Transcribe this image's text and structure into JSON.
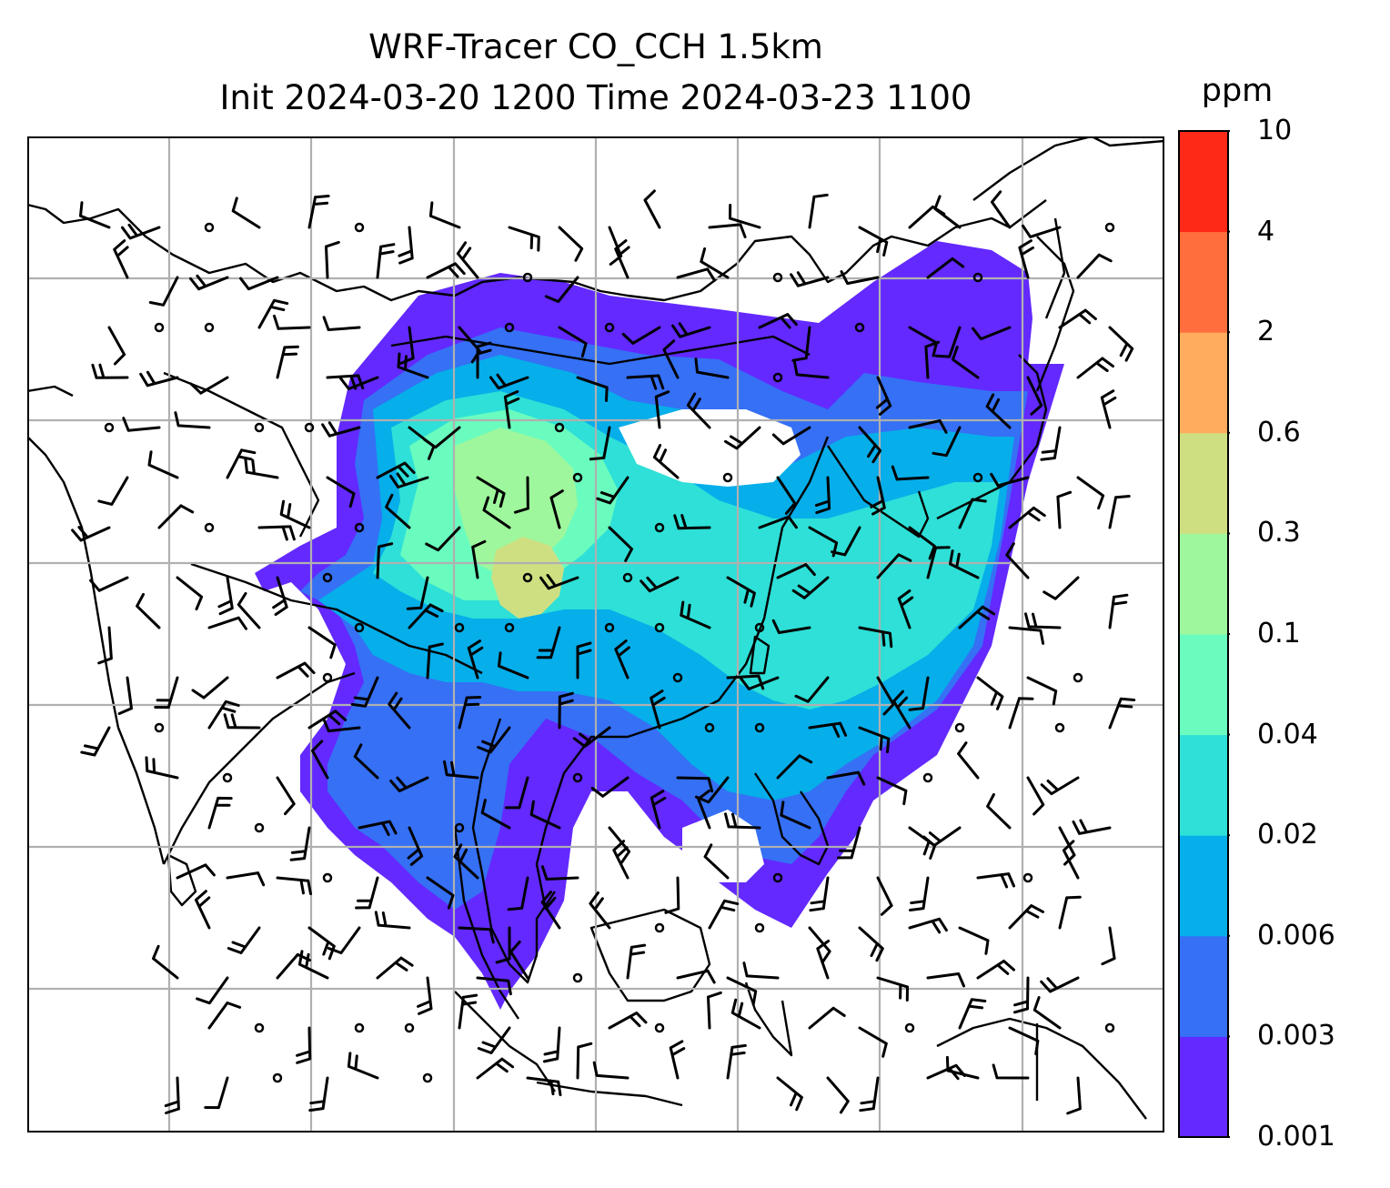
{
  "title": {
    "line1": "WRF-Tracer CO_CCH 1.5km",
    "line2": "Init 2024-03-20 1200 Time 2024-03-23 1100"
  },
  "colorbar": {
    "unit": "ppm",
    "levels": [
      "0.001",
      "0.003",
      "0.006",
      "0.02",
      "0.04",
      "0.1",
      "0.3",
      "0.6",
      "2",
      "4",
      "10"
    ],
    "colors": [
      "#6329ff",
      "#3570f5",
      "#06aeea",
      "#2ee0d7",
      "#6afcbe",
      "#9ef79c",
      "#cedf82",
      "#ffac5e",
      "#ff6e3c",
      "#ff2918"
    ]
  },
  "map": {
    "gridlines": true,
    "background": "#ffffff",
    "coastline_color": "#000000",
    "grid_color": "#b0b0b0",
    "barb_color": "#000000"
  }
}
